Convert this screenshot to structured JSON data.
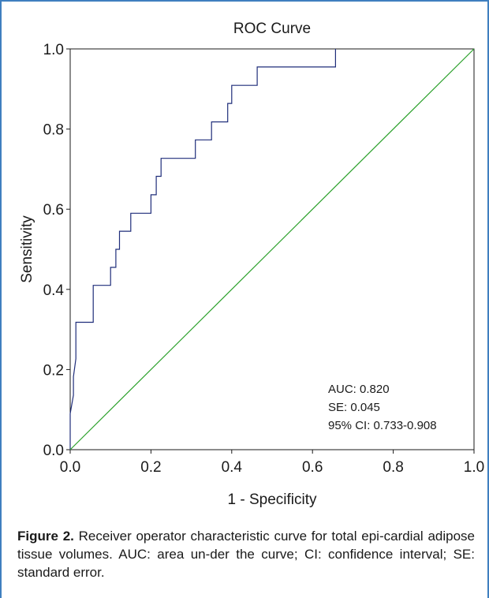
{
  "chart_data": {
    "type": "line",
    "title": "ROC Curve",
    "xlabel": "1 - Specificity",
    "ylabel": "Sensitivity",
    "xlim": [
      0,
      1
    ],
    "ylim": [
      0,
      1
    ],
    "x_ticks": [
      "0.0",
      "0.2",
      "0.4",
      "0.6",
      "0.8",
      "1.0"
    ],
    "y_ticks": [
      "0.0",
      "0.2",
      "0.4",
      "0.6",
      "0.8",
      "1.0"
    ],
    "grid": false,
    "series": [
      {
        "color": "#1f2d7a",
        "x": [
          0.0,
          0.0,
          0.008,
          0.008,
          0.014,
          0.014,
          0.02,
          0.02,
          0.057,
          0.057,
          0.1,
          0.1,
          0.113,
          0.113,
          0.122,
          0.122,
          0.15,
          0.15,
          0.2,
          0.2,
          0.213,
          0.213,
          0.225,
          0.225,
          0.31,
          0.31,
          0.35,
          0.35,
          0.39,
          0.39,
          0.4,
          0.4,
          0.41,
          0.41,
          0.463,
          0.463,
          0.657,
          0.657
        ],
        "y": [
          0.0,
          0.09,
          0.136,
          0.182,
          0.227,
          0.318,
          0.318,
          0.318,
          0.318,
          0.41,
          0.41,
          0.455,
          0.455,
          0.5,
          0.5,
          0.545,
          0.545,
          0.59,
          0.59,
          0.636,
          0.636,
          0.682,
          0.682,
          0.727,
          0.727,
          0.773,
          0.773,
          0.818,
          0.818,
          0.864,
          0.864,
          0.909,
          0.909,
          0.909,
          0.909,
          0.955,
          0.955,
          1.0
        ]
      },
      {
        "color": "#2aa02a",
        "x": [
          0,
          1
        ],
        "y": [
          0,
          1
        ]
      }
    ],
    "annotations": [
      "AUC: 0.820",
      "SE: 0.045",
      "95% CI: 0.733-0.908"
    ]
  },
  "caption": {
    "label": "Figure 2.",
    "text": " Receiver operator characteristic curve for total epi-cardial adipose tissue volumes. AUC: area un-der the curve; CI: confidence interval; SE: standard error."
  },
  "colors": {
    "frame": "#3f7fbf",
    "axis": "#1a1a1a"
  }
}
